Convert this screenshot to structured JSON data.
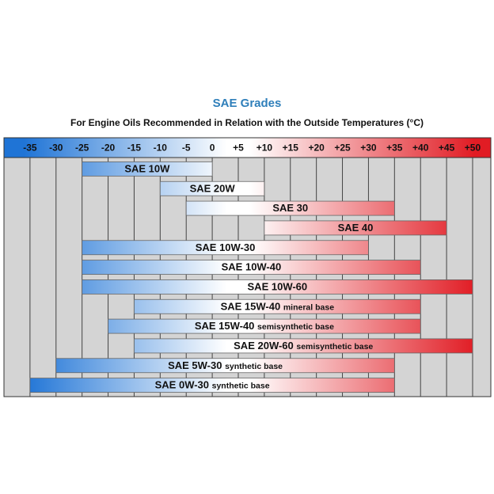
{
  "chart_data": {
    "type": "range-bar",
    "title": "SAE Grades",
    "subtitle": "For Engine Oils Recommended in Relation with the Outside Temperatures (°C)",
    "xlim": [
      -40,
      53.5
    ],
    "xticks": [
      -35,
      -30,
      -25,
      -20,
      -15,
      -10,
      -5,
      0,
      {
        "value": 5,
        "label": "+5"
      },
      {
        "value": 10,
        "label": "+10"
      },
      {
        "value": 15,
        "label": "+15"
      },
      {
        "value": 20,
        "label": "+20"
      },
      {
        "value": 25,
        "label": "+25"
      },
      {
        "value": 30,
        "label": "+30"
      },
      {
        "value": 35,
        "label": "+35"
      },
      {
        "value": 40,
        "label": "+40"
      },
      {
        "value": 45,
        "label": "+45"
      },
      {
        "value": 50,
        "label": "+50"
      }
    ],
    "grid": true,
    "colors": [
      "#1f74d6",
      "#ffffff",
      "#e11c24"
    ],
    "series": [
      {
        "name": "SAE 10W",
        "values": [
          -25,
          0
        ]
      },
      {
        "name": "SAE 20W",
        "values": [
          -10,
          10
        ]
      },
      {
        "name": "SAE 30",
        "values": [
          -5,
          35
        ]
      },
      {
        "name": "SAE 40",
        "values": [
          10,
          45
        ]
      },
      {
        "name": "SAE 10W-30",
        "values": [
          -25,
          30
        ]
      },
      {
        "name": "SAE 10W-40",
        "values": [
          -25,
          40
        ]
      },
      {
        "name": "SAE 10W-60",
        "values": [
          -25,
          50
        ]
      },
      {
        "name": "SAE 15W-40",
        "note": "mineral base",
        "values": [
          -15,
          40
        ]
      },
      {
        "name": "SAE 15W-40",
        "note": "semisynthetic base",
        "values": [
          -20,
          40
        ]
      },
      {
        "name": "SAE 20W-60",
        "note": "semisynthetic base",
        "values": [
          -15,
          50
        ]
      },
      {
        "name": "SAE 5W-30",
        "note": "synthetic base",
        "values": [
          -30,
          35
        ]
      },
      {
        "name": "SAE 0W-30",
        "note": "synthetic base",
        "values": [
          -35,
          35
        ]
      }
    ]
  }
}
